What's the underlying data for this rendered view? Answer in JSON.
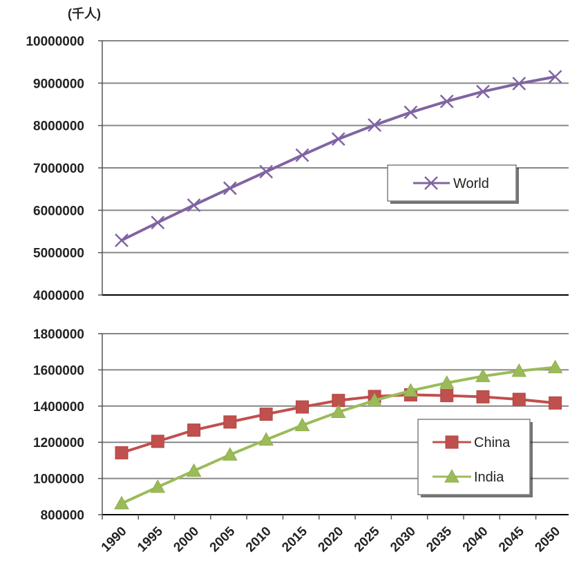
{
  "chart_data": [
    {
      "type": "line",
      "unit_label": "(千人)",
      "ylim": [
        4000000,
        10000000
      ],
      "yticks": [
        "10000000",
        "9000000",
        "8000000",
        "7000000",
        "6000000",
        "5000000",
        "4000000"
      ],
      "grid": true,
      "legend_position": "right-middle",
      "x": [
        1990,
        1995,
        2000,
        2005,
        2010,
        2015,
        2020,
        2025,
        2030,
        2035,
        2040,
        2045,
        2050
      ],
      "series": [
        {
          "name": "World",
          "color": "#8064a2",
          "marker": "x",
          "values": [
            5290000,
            5710000,
            6120000,
            6520000,
            6910000,
            7300000,
            7680000,
            8010000,
            8310000,
            8570000,
            8800000,
            8990000,
            9150000
          ]
        }
      ]
    },
    {
      "type": "line",
      "ylim": [
        800000,
        1800000
      ],
      "yticks": [
        "1800000",
        "1600000",
        "1400000",
        "1200000",
        "1000000",
        "800000"
      ],
      "xticks": [
        "1990",
        "1995",
        "2000",
        "2005",
        "2010",
        "2015",
        "2020",
        "2025",
        "2030",
        "2035",
        "2040",
        "2045",
        "2050"
      ],
      "grid": true,
      "legend_position": "bottom-right",
      "x": [
        1990,
        1995,
        2000,
        2005,
        2010,
        2015,
        2020,
        2025,
        2030,
        2035,
        2040,
        2045,
        2050
      ],
      "series": [
        {
          "name": "China",
          "color": "#c0504d",
          "marker": "square",
          "values": [
            1142000,
            1205000,
            1267000,
            1312000,
            1355000,
            1395000,
            1431000,
            1453000,
            1462000,
            1458000,
            1451000,
            1437000,
            1417000
          ]
        },
        {
          "name": "India",
          "color": "#9bbb59",
          "marker": "triangle",
          "values": [
            862000,
            953000,
            1042000,
            1131000,
            1214000,
            1294000,
            1367000,
            1431000,
            1485000,
            1528000,
            1565000,
            1594000,
            1614000
          ]
        }
      ]
    }
  ]
}
